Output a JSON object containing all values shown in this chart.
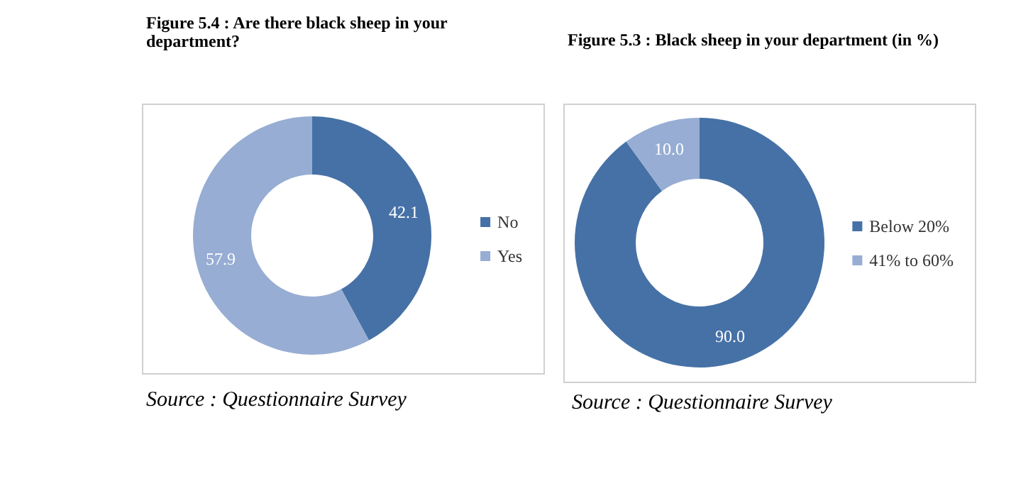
{
  "chart_data": [
    {
      "type": "donut",
      "title": "Figure 5.4 : Are there black sheep in your department?",
      "categories": [
        "No",
        "Yes"
      ],
      "values": [
        42.1,
        57.9
      ],
      "colors": [
        "#4671a6",
        "#97add3"
      ],
      "data_labels": true,
      "legend": "right",
      "annotations": [
        "Source : Questionnaire Survey"
      ]
    },
    {
      "type": "donut",
      "title": "Figure 5.3 : Black sheep in your department (in %)",
      "categories": [
        "Below 20%",
        "41% to 60%"
      ],
      "values": [
        90,
        10
      ],
      "value_labels": [
        "90.0",
        "10.0"
      ],
      "colors": [
        "#4671a6",
        "#97add3"
      ],
      "legend": "right",
      "annotations": [
        "Source : Questionnaire Survey"
      ]
    }
  ]
}
